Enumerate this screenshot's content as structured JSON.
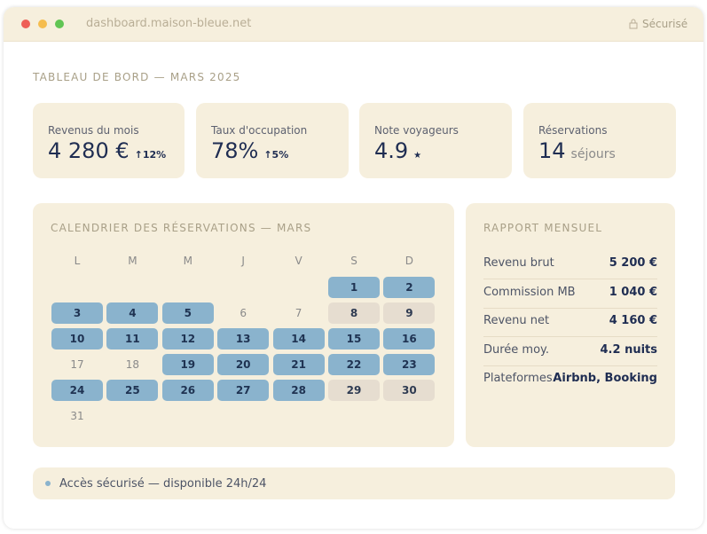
{
  "browser": {
    "url": "dashboard.maison-bleue.net",
    "secure": "Sécurisé"
  },
  "header": {
    "title": "TABLEAU DE BORD — MARS 2025"
  },
  "kpis": [
    {
      "label": "Revenus du mois",
      "value": "4 280 €",
      "delta": "↑12%"
    },
    {
      "label": "Taux d'occupation",
      "value": "78%",
      "delta": "↑5%"
    },
    {
      "label": "Note voyageurs",
      "value": "4.9",
      "suffix": "★"
    },
    {
      "label": "Réservations",
      "value": "14",
      "suffix": "séjours"
    }
  ],
  "calendar": {
    "title": "CALENDRIER DES RÉSERVATIONS — MARS",
    "weekdays": [
      "L",
      "M",
      "M",
      "J",
      "V",
      "S",
      "D"
    ],
    "weeks": [
      [
        null,
        null,
        null,
        null,
        null,
        {
          "day": 1,
          "status": "booked"
        },
        {
          "day": 2,
          "status": "booked"
        }
      ],
      [
        {
          "day": 3,
          "status": "booked"
        },
        {
          "day": 4,
          "status": "booked"
        },
        {
          "day": 5,
          "status": "booked"
        },
        {
          "day": 6,
          "status": "free"
        },
        {
          "day": 7,
          "status": "free"
        },
        {
          "day": 8,
          "status": "blocked"
        },
        {
          "day": 9,
          "status": "blocked"
        }
      ],
      [
        {
          "day": 10,
          "status": "booked"
        },
        {
          "day": 11,
          "status": "booked"
        },
        {
          "day": 12,
          "status": "booked"
        },
        {
          "day": 13,
          "status": "booked"
        },
        {
          "day": 14,
          "status": "booked"
        },
        {
          "day": 15,
          "status": "booked"
        },
        {
          "day": 16,
          "status": "booked"
        }
      ],
      [
        {
          "day": 17,
          "status": "free"
        },
        {
          "day": 18,
          "status": "free"
        },
        {
          "day": 19,
          "status": "booked"
        },
        {
          "day": 20,
          "status": "booked"
        },
        {
          "day": 21,
          "status": "booked"
        },
        {
          "day": 22,
          "status": "booked"
        },
        {
          "day": 23,
          "status": "booked"
        }
      ],
      [
        {
          "day": 24,
          "status": "booked"
        },
        {
          "day": 25,
          "status": "booked"
        },
        {
          "day": 26,
          "status": "booked"
        },
        {
          "day": 27,
          "status": "booked"
        },
        {
          "day": 28,
          "status": "booked"
        },
        {
          "day": 29,
          "status": "blocked"
        },
        {
          "day": 30,
          "status": "blocked"
        }
      ],
      [
        {
          "day": 31,
          "status": "free"
        },
        null,
        null,
        null,
        null,
        null,
        null
      ]
    ]
  },
  "report": {
    "title": "RAPPORT MENSUEL",
    "rows": [
      {
        "label": "Revenu brut",
        "value": "5 200 €"
      },
      {
        "label": "Commission MB",
        "value": "1 040 €"
      },
      {
        "label": "Revenu net",
        "value": "4 160 €"
      },
      {
        "label": "Durée moy.",
        "value": "4.2 nuits"
      },
      {
        "label": "Plateformes",
        "value": "Airbnb, Booking"
      }
    ]
  },
  "footer": {
    "text": "Accès sécurisé — disponible 24h/24"
  }
}
